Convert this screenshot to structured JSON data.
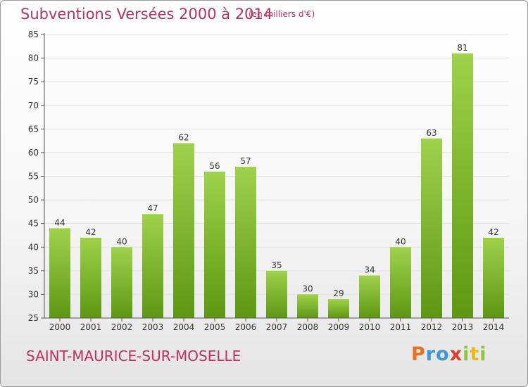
{
  "title": "Subventions Versées 2000 à 2014",
  "subtitle": "(en milliers d'€)",
  "commune": "SAINT-MAURICE-SUR-MOSELLE",
  "brand": {
    "letters": [
      "P",
      "r",
      "o",
      "x",
      "i",
      "t",
      "i"
    ],
    "colors": [
      "#e8731c",
      "#3c9ad8",
      "#3c9ad8",
      "#e23b2c",
      "#8cc63f",
      "#f0b418",
      "#8cc63f"
    ]
  },
  "colors": {
    "bar_top": "#9fd24a",
    "bar_bottom": "#5e9712",
    "axis": "#555555",
    "grid": "#e2e2e2"
  },
  "chart_data": {
    "type": "bar",
    "categories": [
      "2000",
      "2001",
      "2002",
      "2003",
      "2004",
      "2005",
      "2006",
      "2007",
      "2008",
      "2009",
      "2010",
      "2011",
      "2012",
      "2013",
      "2014"
    ],
    "values": [
      44,
      42,
      40,
      47,
      62,
      56,
      57,
      35,
      30,
      29,
      34,
      40,
      63,
      81,
      42
    ],
    "title": "Subventions Versées 2000 à 2014",
    "subtitle": "(en milliers d'€)",
    "ylim": [
      25,
      85
    ],
    "yticks": [
      25,
      30,
      35,
      40,
      45,
      50,
      55,
      60,
      65,
      70,
      75,
      80,
      85
    ],
    "grid": true,
    "legend": "none"
  }
}
